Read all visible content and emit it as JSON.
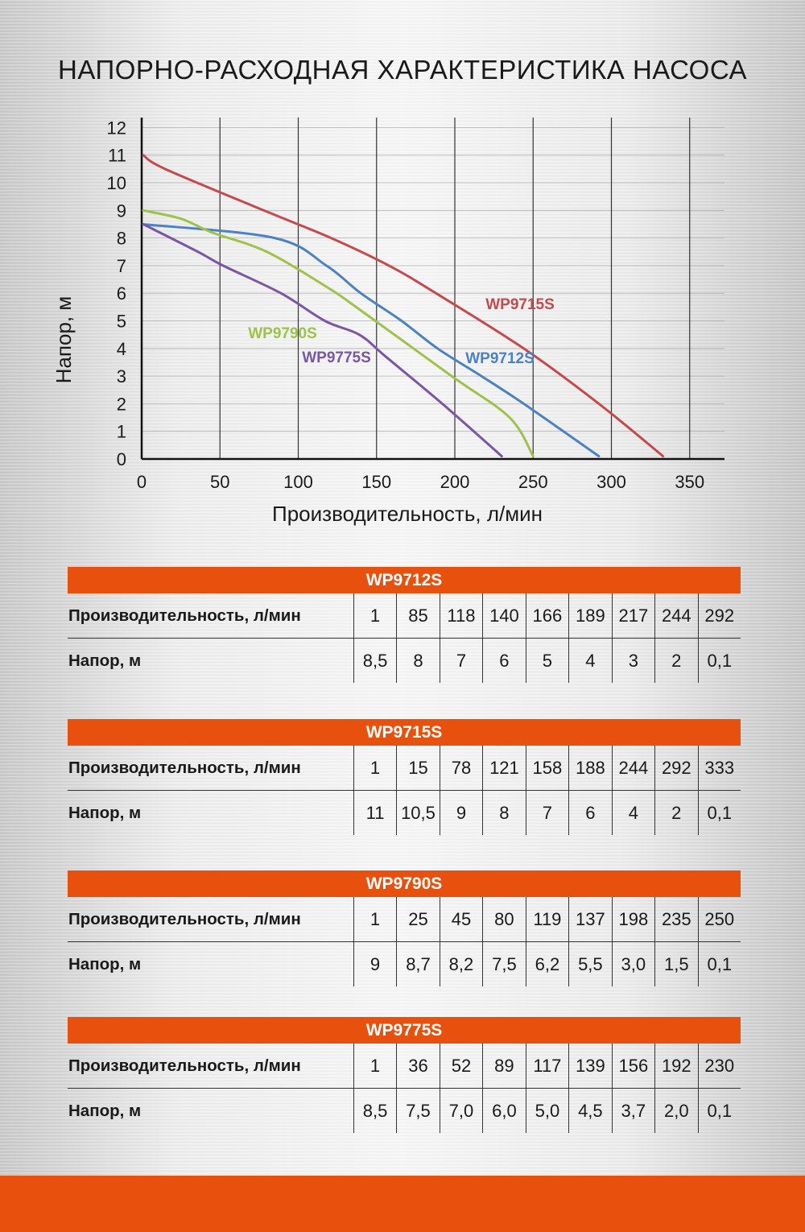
{
  "page": {
    "title": "НАПОРНО-РАСХОДНАЯ ХАРАКТЕРИСТИКА НАСОСА"
  },
  "colors": {
    "accent": "#e8500e",
    "WP9715S": "#c64a4c",
    "WP9712S": "#4a82c4",
    "WP9790S": "#9ec24a",
    "WP9775S": "#7b55a8"
  },
  "chart_data": {
    "type": "line",
    "xlabel": "Производительность, л/мин",
    "ylabel": "Напор, м",
    "xlim": [
      0,
      350
    ],
    "ylim": [
      0,
      12
    ],
    "xticks": [
      0,
      50,
      100,
      150,
      200,
      250,
      300,
      350
    ],
    "yticks": [
      0,
      1,
      2,
      3,
      4,
      5,
      6,
      7,
      8,
      9,
      10,
      11,
      12
    ],
    "grid": "vertical",
    "series": [
      {
        "name": "WP9715S",
        "color": "#c64a4c",
        "x": [
          1,
          15,
          78,
          121,
          158,
          188,
          244,
          292,
          333
        ],
        "y": [
          11,
          10.5,
          9,
          8,
          7,
          6,
          4,
          2,
          0.1
        ]
      },
      {
        "name": "WP9712S",
        "color": "#4a82c4",
        "x": [
          1,
          85,
          118,
          140,
          166,
          189,
          217,
          244,
          292
        ],
        "y": [
          8.5,
          8,
          7,
          6,
          5,
          4,
          3,
          2,
          0.1
        ]
      },
      {
        "name": "WP9790S",
        "color": "#9ec24a",
        "x": [
          1,
          25,
          45,
          80,
          119,
          137,
          198,
          235,
          250
        ],
        "y": [
          9,
          8.7,
          8.2,
          7.5,
          6.2,
          5.5,
          3.0,
          1.5,
          0.1
        ]
      },
      {
        "name": "WP9775S",
        "color": "#7b55a8",
        "x": [
          1,
          36,
          52,
          89,
          117,
          139,
          156,
          192,
          230
        ],
        "y": [
          8.5,
          7.5,
          7.0,
          6.0,
          5.0,
          4.5,
          3.7,
          2.0,
          0.1
        ]
      }
    ]
  },
  "tables": [
    {
      "model": "WP9712S",
      "flow_label": "Производительность, л/мин",
      "head_label": "Напор, м",
      "flow": [
        "1",
        "85",
        "118",
        "140",
        "166",
        "189",
        "217",
        "244",
        "292"
      ],
      "head": [
        "8,5",
        "8",
        "7",
        "6",
        "5",
        "4",
        "3",
        "2",
        "0,1"
      ]
    },
    {
      "model": "WP9715S",
      "flow_label": "Производительность, л/мин",
      "head_label": "Напор, м",
      "flow": [
        "1",
        "15",
        "78",
        "121",
        "158",
        "188",
        "244",
        "292",
        "333"
      ],
      "head": [
        "11",
        "10,5",
        "9",
        "8",
        "7",
        "6",
        "4",
        "2",
        "0,1"
      ]
    },
    {
      "model": "WP9790S",
      "flow_label": "Производительность, л/мин",
      "head_label": "Напор, м",
      "flow": [
        "1",
        "25",
        "45",
        "80",
        "119",
        "137",
        "198",
        "235",
        "250"
      ],
      "head": [
        "9",
        "8,7",
        "8,2",
        "7,5",
        "6,2",
        "5,5",
        "3,0",
        "1,5",
        "0,1"
      ]
    },
    {
      "model": "WP9775S",
      "flow_label": "Производительность, л/мин",
      "head_label": "Напор, м",
      "flow": [
        "1",
        "36",
        "52",
        "89",
        "117",
        "139",
        "156",
        "192",
        "230"
      ],
      "head": [
        "8,5",
        "7,5",
        "7,0",
        "6,0",
        "5,0",
        "4,5",
        "3,7",
        "2,0",
        "0,1"
      ]
    }
  ]
}
